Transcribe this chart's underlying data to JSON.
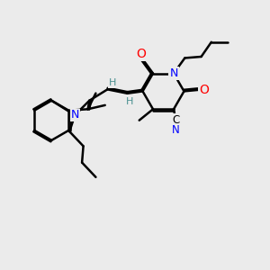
{
  "background_color": "#EBEBEB",
  "atom_colors": {
    "C": "#000000",
    "N": "#0000FF",
    "O": "#FF0000",
    "H": "#4a9090"
  },
  "bond_color": "#000000",
  "bond_width": 1.8,
  "figsize": [
    3.0,
    3.0
  ],
  "dpi": 100
}
